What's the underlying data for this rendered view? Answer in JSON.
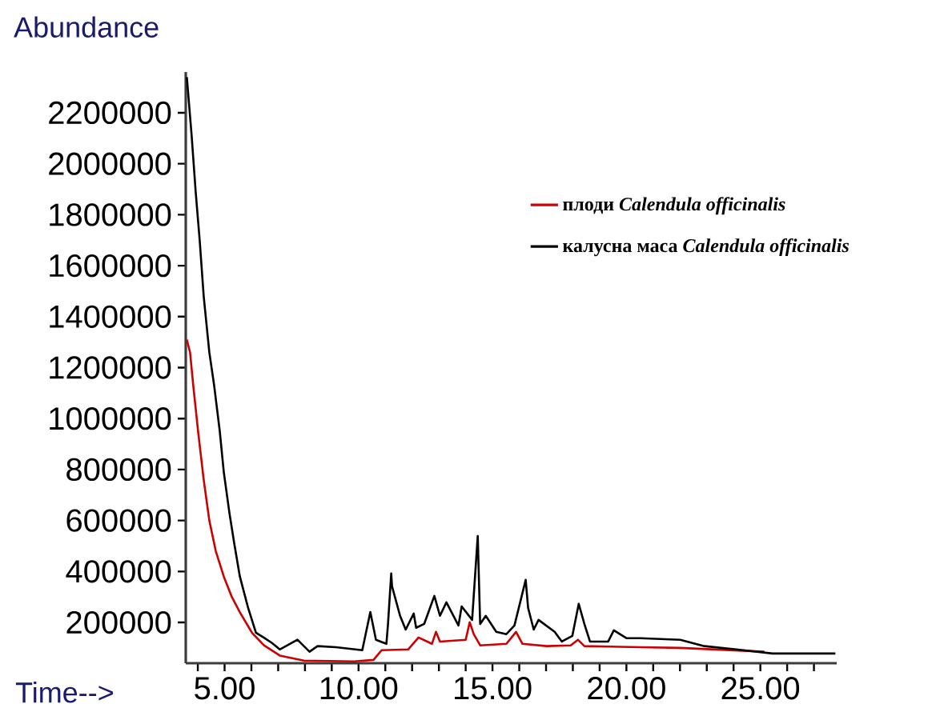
{
  "chart_data": {
    "type": "line",
    "xlabel": "Time-->",
    "ylabel": "Abundance",
    "xlim": [
      3.55,
      27.85
    ],
    "ylim": [
      40000,
      2360000
    ],
    "xticks": [
      {
        "value": 4,
        "label": null
      },
      {
        "value": 5,
        "label": "5.00"
      },
      {
        "value": 6,
        "label": null
      },
      {
        "value": 7,
        "label": null
      },
      {
        "value": 8,
        "label": null
      },
      {
        "value": 9,
        "label": null
      },
      {
        "value": 10,
        "label": "10.00"
      },
      {
        "value": 11,
        "label": null
      },
      {
        "value": 12,
        "label": null
      },
      {
        "value": 13,
        "label": null
      },
      {
        "value": 14,
        "label": null
      },
      {
        "value": 15,
        "label": "15.00"
      },
      {
        "value": 16,
        "label": null
      },
      {
        "value": 17,
        "label": null
      },
      {
        "value": 18,
        "label": null
      },
      {
        "value": 19,
        "label": null
      },
      {
        "value": 20,
        "label": "20.00"
      },
      {
        "value": 21,
        "label": null
      },
      {
        "value": 22,
        "label": null
      },
      {
        "value": 23,
        "label": null
      },
      {
        "value": 24,
        "label": null
      },
      {
        "value": 25,
        "label": "25.00"
      },
      {
        "value": 26,
        "label": null
      },
      {
        "value": 27,
        "label": null
      }
    ],
    "yticks": [
      200000,
      400000,
      600000,
      800000,
      1000000,
      1200000,
      1400000,
      1600000,
      1800000,
      2000000,
      2200000
    ],
    "legend": "top right",
    "line_style": "solid",
    "series": [
      {
        "name": "плоди *Calendula officinalis*",
        "color": "#cc0000",
        "x": [
          3.59,
          3.71,
          3.83,
          4.01,
          4.22,
          4.43,
          4.67,
          4.97,
          5.27,
          5.57,
          6.02,
          6.47,
          7.06,
          7.96,
          9.84,
          10.56,
          10.86,
          11.85,
          12.24,
          12.74,
          12.89,
          13.04,
          14.0,
          14.15,
          14.3,
          14.54,
          15.52,
          15.88,
          16.12,
          17.02,
          17.92,
          18.19,
          18.43,
          20.52,
          22.01,
          25.15
        ],
        "values": [
          1310000,
          1260000,
          1130000,
          950000,
          760000,
          600000,
          480000,
          380000,
          300000,
          240000,
          160000,
          110000,
          70000,
          50000,
          47000,
          53000,
          91000,
          94000,
          141000,
          116000,
          163000,
          125000,
          132000,
          201000,
          154000,
          110000,
          116000,
          163000,
          116000,
          107000,
          110000,
          132000,
          107000,
          103000,
          100000,
          85000
        ]
      },
      {
        "name": "калусна маса *Calendula officinalis*",
        "color": "#000000",
        "x": [
          3.59,
          3.77,
          3.92,
          4.07,
          4.22,
          4.43,
          4.61,
          4.82,
          4.97,
          5.18,
          5.36,
          5.57,
          5.87,
          6.17,
          6.47,
          6.76,
          7.06,
          7.72,
          8.17,
          8.47,
          9.16,
          10.14,
          10.44,
          10.65,
          11.04,
          11.1,
          11.22,
          11.25,
          11.55,
          11.76,
          12.06,
          12.15,
          12.45,
          12.83,
          13.04,
          13.28,
          13.73,
          13.85,
          14.24,
          14.45,
          14.54,
          14.75,
          15.14,
          15.52,
          15.82,
          16.24,
          16.33,
          16.54,
          16.72,
          17.32,
          17.59,
          17.98,
          18.22,
          18.43,
          18.64,
          19.32,
          19.53,
          20.01,
          20.52,
          22.01,
          22.91,
          24.1,
          25.45,
          27.8
        ],
        "values": [
          2340000,
          2110000,
          1890000,
          1700000,
          1480000,
          1260000,
          1130000,
          950000,
          790000,
          630000,
          510000,
          380000,
          260000,
          160000,
          140000,
          120000,
          94000,
          132000,
          85000,
          107000,
          103000,
          91000,
          241000,
          132000,
          116000,
          194000,
          392000,
          342000,
          226000,
          172000,
          235000,
          179000,
          194000,
          304000,
          226000,
          279000,
          188000,
          263000,
          210000,
          539000,
          194000,
          226000,
          163000,
          154000,
          188000,
          367000,
          257000,
          172000,
          210000,
          163000,
          125000,
          147000,
          273000,
          194000,
          125000,
          125000,
          169000,
          138000,
          138000,
          132000,
          107000,
          94000,
          78000,
          78000
        ]
      }
    ]
  }
}
